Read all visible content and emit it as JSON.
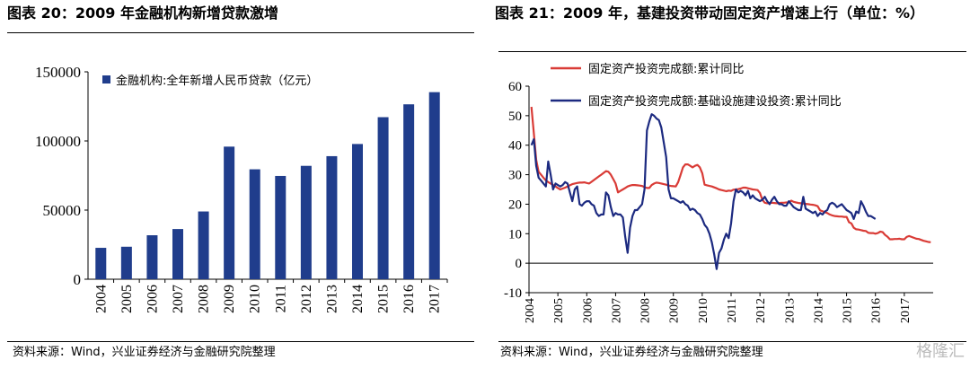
{
  "left": {
    "title": "图表 20：2009 年金融机构新增贷款激增",
    "source": "资料来源：Wind，兴业证券经济与金融研究院整理",
    "colors": {
      "bar": "#203d8c"
    }
  },
  "right": {
    "title": "图表 21：2009 年，基建投资带动固定资产增速上行（单位：%）",
    "source": "资料来源：Wind，兴业证券经济与金融研究院整理",
    "colors": {
      "total": "#d93b36",
      "infra": "#1c2a80"
    }
  },
  "watermark": "格隆汇",
  "chart_data": [
    {
      "type": "bar",
      "title": "",
      "legend": "金融机构:全年新增人民币贷款（亿元）",
      "legend_position": "top-left",
      "categories": [
        "2004",
        "2005",
        "2006",
        "2007",
        "2008",
        "2009",
        "2010",
        "2011",
        "2012",
        "2013",
        "2014",
        "2015",
        "2016",
        "2017"
      ],
      "values": [
        22700,
        23500,
        31800,
        36300,
        49000,
        95900,
        79500,
        74700,
        82000,
        89000,
        97800,
        117200,
        126500,
        135300
      ],
      "yticks": [
        "150000",
        "100000",
        "50000",
        "0"
      ],
      "ylim": [
        0,
        150000
      ],
      "grid": false
    },
    {
      "type": "line",
      "title": "",
      "legend_position": "top",
      "x_start": "2004-02",
      "x_step": "month",
      "xticks": [
        "2004",
        "2005",
        "2006",
        "2007",
        "2008",
        "2009",
        "2010",
        "2011",
        "2012",
        "2013",
        "2014",
        "2015",
        "2016",
        "2017"
      ],
      "yticks": [
        "60",
        "50",
        "40",
        "30",
        "20",
        "10",
        "0",
        "-10"
      ],
      "ylim": [
        -10,
        60
      ],
      "grid": false,
      "series": [
        {
          "name": "固定资产投资完成额:累计同比",
          "color": "#d93b36",
          "values": [
            53.0,
            44.0,
            35.0,
            31.0,
            30.0,
            29.0,
            28.0,
            27.5,
            27.0,
            26.5,
            26.0,
            25.5,
            25.0,
            25.3,
            25.6,
            26.0,
            26.4,
            26.8,
            27.0,
            27.2,
            27.3,
            27.3,
            27.4,
            27.2,
            27.0,
            27.6,
            28.2,
            28.8,
            29.4,
            30.0,
            30.6,
            31.2,
            31.0,
            30.0,
            28.5,
            27.0,
            24.0,
            24.5,
            25.0,
            25.5,
            26.0,
            26.3,
            26.5,
            26.5,
            26.4,
            26.3,
            26.2,
            25.8,
            25.5,
            25.5,
            26.5,
            27.0,
            27.3,
            27.2,
            27.0,
            26.8,
            26.6,
            26.3,
            26.2,
            26.1,
            26.0,
            27.5,
            30.0,
            32.5,
            33.5,
            33.5,
            33.0,
            32.5,
            33.0,
            33.3,
            32.5,
            30.5,
            26.6,
            26.4,
            26.2,
            26.0,
            25.7,
            25.4,
            25.0,
            24.8,
            24.6,
            24.4,
            24.6,
            24.5,
            24.9,
            25.0,
            25.1,
            25.3,
            25.6,
            25.6,
            25.4,
            25.2,
            25.0,
            24.9,
            24.8,
            23.8,
            21.5,
            20.5,
            20.3,
            20.4,
            20.5,
            20.4,
            20.3,
            20.4,
            20.5,
            20.5,
            20.6,
            20.6,
            21.2,
            20.8,
            20.6,
            20.4,
            20.3,
            20.2,
            20.1,
            20.0,
            19.9,
            19.8,
            19.6,
            19.3,
            17.9,
            17.6,
            17.3,
            17.0,
            16.5,
            16.2,
            16.0,
            15.9,
            15.8,
            15.8,
            15.7,
            15.7,
            13.9,
            13.5,
            12.0,
            11.5,
            11.4,
            11.2,
            11.0,
            10.9,
            10.3,
            10.2,
            10.2,
            10.0,
            10.2,
            10.7,
            10.5,
            9.6,
            9.0,
            8.1,
            8.1,
            8.2,
            8.2,
            8.3,
            8.1,
            8.1,
            8.9,
            9.2,
            8.9,
            8.6,
            8.3,
            8.2,
            7.9,
            7.6,
            7.4,
            7.2,
            7.1
          ]
        },
        {
          "name": "固定资产投资完成额:基础设施建设投资:累计同比",
          "color": "#1c2a80",
          "values": [
            40.0,
            42.0,
            33.0,
            29.0,
            28.0,
            27.0,
            26.0,
            34.5,
            30.0,
            25.0,
            27.0,
            26.5,
            26.0,
            26.5,
            27.5,
            27.0,
            24.0,
            21.0,
            25.0,
            26.0,
            20.0,
            19.5,
            20.5,
            21.0,
            21.0,
            20.0,
            19.5,
            17.0,
            16.0,
            16.5,
            16.5,
            24.0,
            23.0,
            19.0,
            16.0,
            17.0,
            16.5,
            16.5,
            15.5,
            9.0,
            3.5,
            12.0,
            16.0,
            18.0,
            18.0,
            19.0,
            20.0,
            25.0,
            45.0,
            48.0,
            50.5,
            50.0,
            49.0,
            48.5,
            46.0,
            41.0,
            36.0,
            25.0,
            22.0,
            22.0,
            21.5,
            21.0,
            20.5,
            21.0,
            20.0,
            19.5,
            18.0,
            18.5,
            18.0,
            17.0,
            16.5,
            15.0,
            13.0,
            12.0,
            10.0,
            7.0,
            3.0,
            -2.0,
            3.5,
            5.0,
            8.0,
            10.0,
            8.5,
            13.5,
            21.0,
            25.0,
            24.0,
            24.5,
            24.0,
            23.0,
            24.5,
            22.0,
            23.0,
            22.0,
            21.5,
            21.0,
            21.5,
            22.5,
            21.0,
            20.0,
            21.5,
            22.5,
            21.0,
            20.0,
            20.0,
            19.5,
            19.5,
            21.0,
            20.0,
            19.0,
            18.5,
            18.0,
            18.0,
            22.5,
            18.5,
            18.0,
            17.5,
            17.0,
            17.5,
            16.0,
            17.0,
            16.5,
            17.5,
            18.0,
            20.0,
            20.5,
            20.0,
            19.0,
            19.5,
            20.0,
            19.0,
            18.0,
            17.5,
            17.0,
            15.0,
            17.5,
            17.0,
            21.0,
            19.5,
            17.5,
            16.0,
            16.0,
            15.5,
            15.0
          ]
        }
      ]
    }
  ]
}
